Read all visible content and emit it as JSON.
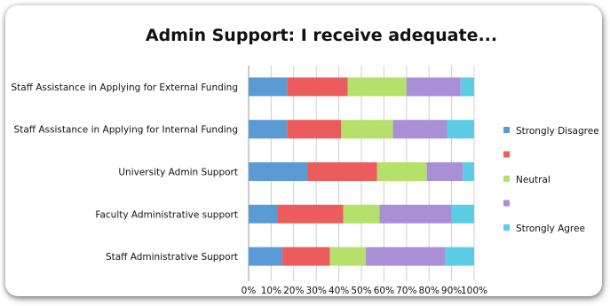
{
  "chart_data": {
    "type": "bar",
    "orientation": "horizontal",
    "stacked": "percent",
    "title": "Admin Support: I receive adequate...",
    "xlabel": "",
    "ylabel": "",
    "xlim": [
      0,
      100
    ],
    "x_ticks": [
      "0%",
      "10%",
      "20%",
      "30%",
      "40%",
      "50%",
      "60%",
      "70%",
      "80%",
      "90%",
      "100%"
    ],
    "grid": "vertical",
    "legend": "right",
    "categories": [
      "Staff Assistance in Applying for External Funding",
      "Staff Assistance in Applying for Internal Funding",
      "University Admin Support",
      "Faculty Administrative support",
      "Staff Administrative Support"
    ],
    "series": [
      {
        "name": "Strongly Disagree",
        "color": "#5b9bd5",
        "values": [
          17,
          17,
          26,
          13,
          15
        ]
      },
      {
        "name": "",
        "color": "#ed5c5c",
        "values": [
          27,
          24,
          31,
          29,
          21
        ]
      },
      {
        "name": "Neutral",
        "color": "#b5e06a",
        "values": [
          26,
          23,
          22,
          16,
          16
        ]
      },
      {
        "name": "",
        "color": "#a98fd6",
        "values": [
          24,
          24,
          16,
          32,
          35
        ]
      },
      {
        "name": "Strongly Agree",
        "color": "#5ccde6",
        "values": [
          6,
          12,
          5,
          10,
          13
        ]
      }
    ]
  }
}
